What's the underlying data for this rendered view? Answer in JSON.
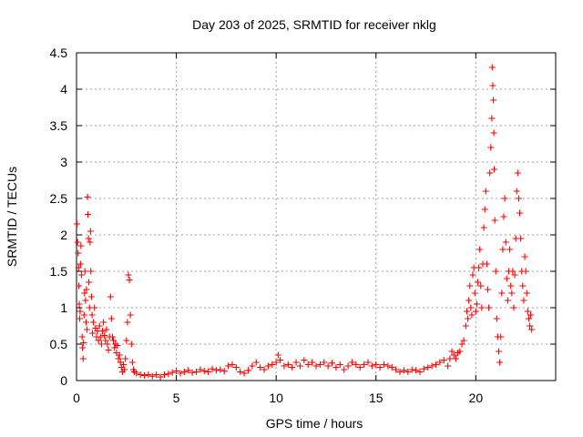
{
  "chart_data": {
    "type": "scatter",
    "title": "Day 203 of 2025, SRMTID for receiver nklg",
    "xlabel": "GPS time / hours",
    "ylabel": "SRMTID / TECUs",
    "xlim": [
      0,
      24
    ],
    "ylim": [
      0,
      4.5
    ],
    "x_ticks": [
      0,
      5,
      10,
      15,
      20
    ],
    "x_tick_labels": [
      "0",
      "5",
      "10",
      "15",
      "20"
    ],
    "y_ticks": [
      0,
      0.5,
      1,
      1.5,
      2,
      2.5,
      3,
      3.5,
      4,
      4.5
    ],
    "y_tick_labels": [
      "0",
      "0.5",
      "1",
      "1.5",
      "2",
      "2.5",
      "3",
      "3.5",
      "4",
      "4.5"
    ],
    "grid": true,
    "marker": "+",
    "color": "#ff0000",
    "series": [
      {
        "name": "SRMTID",
        "points": [
          [
            0.02,
            2.15
          ],
          [
            0.05,
            1.9
          ],
          [
            0.08,
            1.75
          ],
          [
            0.1,
            1.55
          ],
          [
            0.12,
            1.3
          ],
          [
            0.14,
            1.05
          ],
          [
            0.16,
            0.85
          ],
          [
            0.18,
            0.95
          ],
          [
            0.2,
            1.6
          ],
          [
            0.22,
            1.85
          ],
          [
            0.25,
            1.45
          ],
          [
            0.28,
            0.6
          ],
          [
            0.3,
            0.45
          ],
          [
            0.33,
            0.3
          ],
          [
            0.35,
            0.52
          ],
          [
            0.38,
            0.9
          ],
          [
            0.4,
            1.2
          ],
          [
            0.42,
            1.5
          ],
          [
            0.45,
            1.1
          ],
          [
            0.48,
            0.8
          ],
          [
            0.5,
            1.25
          ],
          [
            0.52,
            0.7
          ],
          [
            0.55,
            2.52
          ],
          [
            0.57,
            2.28
          ],
          [
            0.6,
            1.95
          ],
          [
            0.62,
            1.35
          ],
          [
            0.65,
            1.0
          ],
          [
            0.68,
            1.9
          ],
          [
            0.7,
            2.05
          ],
          [
            0.72,
            1.5
          ],
          [
            0.75,
            1.15
          ],
          [
            0.78,
            0.9
          ],
          [
            0.8,
            0.65
          ],
          [
            0.85,
            0.8
          ],
          [
            0.9,
            1.0
          ],
          [
            0.95,
            0.72
          ],
          [
            1.0,
            0.6
          ],
          [
            1.05,
            0.68
          ],
          [
            1.1,
            0.55
          ],
          [
            1.15,
            0.75
          ],
          [
            1.2,
            0.6
          ],
          [
            1.25,
            0.5
          ],
          [
            1.3,
            0.68
          ],
          [
            1.35,
            0.8
          ],
          [
            1.4,
            0.62
          ],
          [
            1.45,
            0.55
          ],
          [
            1.5,
            0.7
          ],
          [
            1.55,
            0.5
          ],
          [
            1.6,
            0.42
          ],
          [
            1.65,
            0.6
          ],
          [
            1.7,
            1.15
          ],
          [
            1.75,
            0.85
          ],
          [
            1.8,
            0.6
          ],
          [
            1.85,
            0.55
          ],
          [
            1.9,
            0.45
          ],
          [
            1.95,
            0.5
          ],
          [
            2.0,
            0.38
          ],
          [
            2.05,
            0.48
          ],
          [
            2.1,
            0.3
          ],
          [
            2.15,
            0.35
          ],
          [
            2.2,
            0.25
          ],
          [
            2.25,
            0.18
          ],
          [
            2.3,
            0.12
          ],
          [
            2.35,
            0.22
          ],
          [
            2.4,
            0.15
          ],
          [
            2.45,
            0.3
          ],
          [
            2.5,
            0.55
          ],
          [
            2.55,
            0.8
          ],
          [
            2.6,
            1.45
          ],
          [
            2.65,
            1.38
          ],
          [
            2.7,
            0.9
          ],
          [
            2.75,
            0.5
          ],
          [
            2.8,
            0.25
          ],
          [
            2.85,
            0.15
          ],
          [
            2.9,
            0.12
          ],
          [
            3.0,
            0.1
          ],
          [
            3.2,
            0.08
          ],
          [
            3.4,
            0.07
          ],
          [
            3.6,
            0.08
          ],
          [
            3.8,
            0.06
          ],
          [
            4.0,
            0.08
          ],
          [
            4.2,
            0.05
          ],
          [
            4.4,
            0.08
          ],
          [
            4.6,
            0.09
          ],
          [
            4.8,
            0.11
          ],
          [
            5.0,
            0.13
          ],
          [
            5.2,
            0.1
          ],
          [
            5.4,
            0.12
          ],
          [
            5.6,
            0.14
          ],
          [
            5.8,
            0.11
          ],
          [
            6.0,
            0.12
          ],
          [
            6.2,
            0.15
          ],
          [
            6.4,
            0.13
          ],
          [
            6.6,
            0.12
          ],
          [
            6.8,
            0.16
          ],
          [
            7.0,
            0.14
          ],
          [
            7.2,
            0.15
          ],
          [
            7.4,
            0.13
          ],
          [
            7.6,
            0.2
          ],
          [
            7.8,
            0.22
          ],
          [
            8.0,
            0.18
          ],
          [
            8.2,
            0.12
          ],
          [
            8.4,
            0.1
          ],
          [
            8.6,
            0.14
          ],
          [
            8.8,
            0.2
          ],
          [
            9.0,
            0.25
          ],
          [
            9.2,
            0.18
          ],
          [
            9.4,
            0.15
          ],
          [
            9.6,
            0.2
          ],
          [
            9.8,
            0.22
          ],
          [
            10.0,
            0.25
          ],
          [
            10.1,
            0.35
          ],
          [
            10.2,
            0.28
          ],
          [
            10.4,
            0.2
          ],
          [
            10.6,
            0.22
          ],
          [
            10.8,
            0.18
          ],
          [
            11.0,
            0.25
          ],
          [
            11.2,
            0.2
          ],
          [
            11.4,
            0.28
          ],
          [
            11.6,
            0.22
          ],
          [
            11.8,
            0.25
          ],
          [
            12.0,
            0.2
          ],
          [
            12.2,
            0.22
          ],
          [
            12.4,
            0.25
          ],
          [
            12.6,
            0.2
          ],
          [
            12.8,
            0.24
          ],
          [
            13.0,
            0.18
          ],
          [
            13.2,
            0.22
          ],
          [
            13.4,
            0.15
          ],
          [
            13.6,
            0.2
          ],
          [
            13.8,
            0.25
          ],
          [
            14.0,
            0.22
          ],
          [
            14.2,
            0.18
          ],
          [
            14.4,
            0.22
          ],
          [
            14.6,
            0.25
          ],
          [
            14.8,
            0.2
          ],
          [
            15.0,
            0.22
          ],
          [
            15.2,
            0.18
          ],
          [
            15.4,
            0.22
          ],
          [
            15.6,
            0.2
          ],
          [
            15.8,
            0.18
          ],
          [
            16.0,
            0.15
          ],
          [
            16.2,
            0.12
          ],
          [
            16.4,
            0.14
          ],
          [
            16.6,
            0.12
          ],
          [
            16.8,
            0.15
          ],
          [
            17.0,
            0.14
          ],
          [
            17.2,
            0.12
          ],
          [
            17.4,
            0.16
          ],
          [
            17.6,
            0.18
          ],
          [
            17.8,
            0.2
          ],
          [
            18.0,
            0.22
          ],
          [
            18.2,
            0.25
          ],
          [
            18.4,
            0.28
          ],
          [
            18.6,
            0.2
          ],
          [
            18.7,
            0.3
          ],
          [
            18.8,
            0.4
          ],
          [
            18.9,
            0.35
          ],
          [
            19.0,
            0.3
          ],
          [
            19.1,
            0.38
          ],
          [
            19.2,
            0.4
          ],
          [
            19.3,
            0.5
          ],
          [
            19.4,
            0.55
          ],
          [
            19.5,
            0.75
          ],
          [
            19.55,
            0.95
          ],
          [
            19.6,
            0.85
          ],
          [
            19.65,
            1.1
          ],
          [
            19.7,
            1.3
          ],
          [
            19.75,
            1.0
          ],
          [
            19.8,
            0.9
          ],
          [
            19.85,
            1.45
          ],
          [
            19.9,
            1.55
          ],
          [
            19.95,
            1.2
          ],
          [
            20.0,
            0.95
          ],
          [
            20.05,
            1.05
          ],
          [
            20.1,
            1.35
          ],
          [
            20.15,
            1.55
          ],
          [
            20.2,
            1.8
          ],
          [
            20.25,
            1.3
          ],
          [
            20.3,
            1.0
          ],
          [
            20.35,
            1.6
          ],
          [
            20.4,
            2.1
          ],
          [
            20.45,
            2.35
          ],
          [
            20.5,
            2.6
          ],
          [
            20.55,
            1.6
          ],
          [
            20.6,
            1.25
          ],
          [
            20.65,
            1.0
          ],
          [
            20.7,
            2.85
          ],
          [
            20.75,
            3.2
          ],
          [
            20.8,
            3.6
          ],
          [
            20.82,
            4.3
          ],
          [
            20.85,
            4.05
          ],
          [
            20.88,
            3.85
          ],
          [
            20.9,
            3.4
          ],
          [
            20.92,
            2.9
          ],
          [
            20.95,
            2.2
          ],
          [
            21.0,
            1.5
          ],
          [
            21.05,
            0.85
          ],
          [
            21.1,
            0.6
          ],
          [
            21.15,
            0.4
          ],
          [
            21.2,
            0.25
          ],
          [
            21.25,
            0.6
          ],
          [
            21.3,
            1.2
          ],
          [
            21.35,
            1.8
          ],
          [
            21.4,
            2.25
          ],
          [
            21.45,
            2.5
          ],
          [
            21.5,
            1.9
          ],
          [
            21.55,
            1.4
          ],
          [
            21.6,
            1.1
          ],
          [
            21.65,
            1.5
          ],
          [
            21.7,
            1.8
          ],
          [
            21.75,
            1.3
          ],
          [
            21.8,
            1.2
          ],
          [
            21.85,
            1.5
          ],
          [
            21.9,
            1.0
          ],
          [
            21.95,
            1.45
          ],
          [
            22.0,
            1.95
          ],
          [
            22.05,
            2.6
          ],
          [
            22.1,
            2.85
          ],
          [
            22.15,
            2.5
          ],
          [
            22.2,
            2.3
          ],
          [
            22.25,
            1.95
          ],
          [
            22.3,
            1.5
          ],
          [
            22.35,
            1.3
          ],
          [
            22.4,
            1.1
          ],
          [
            22.45,
            1.7
          ],
          [
            22.5,
            1.5
          ],
          [
            22.55,
            1.2
          ],
          [
            22.6,
            0.95
          ],
          [
            22.65,
            0.85
          ],
          [
            22.7,
            0.75
          ],
          [
            22.75,
            0.9
          ],
          [
            22.8,
            0.7
          ]
        ]
      }
    ]
  }
}
